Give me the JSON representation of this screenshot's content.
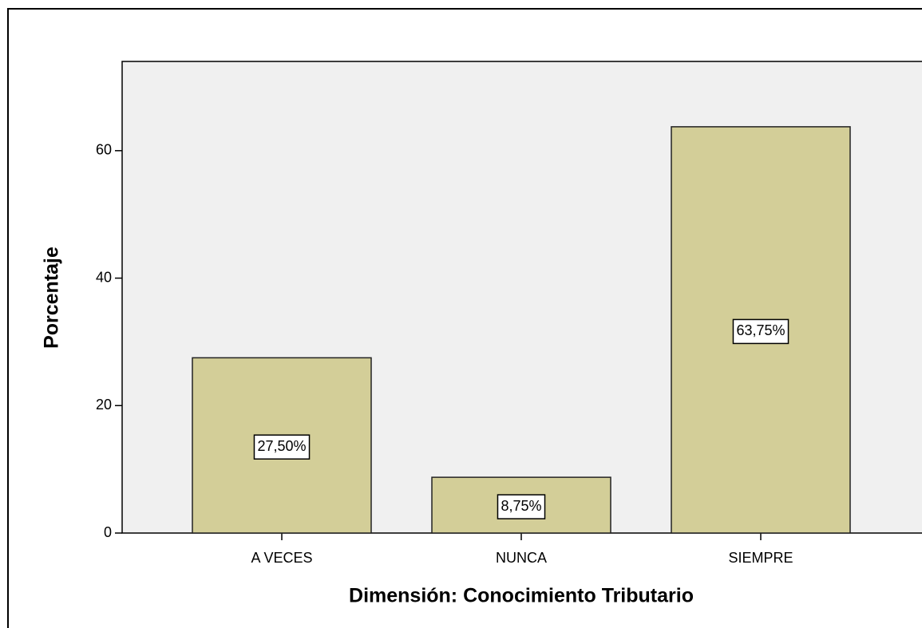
{
  "chart_data": {
    "type": "bar",
    "x_label": "Dimensión: Conocimiento Tributario",
    "y_label": "Porcentaje",
    "categories": [
      "A VECES",
      "NUNCA",
      "SIEMPRE"
    ],
    "values": [
      27.5,
      8.75,
      63.75
    ],
    "value_labels": [
      "27,50%",
      "8,75%",
      "63,75%"
    ],
    "color": "#d3ce98",
    "ylim": [
      0,
      74
    ],
    "yticks": [
      0,
      20,
      40,
      60
    ],
    "grid": false
  }
}
